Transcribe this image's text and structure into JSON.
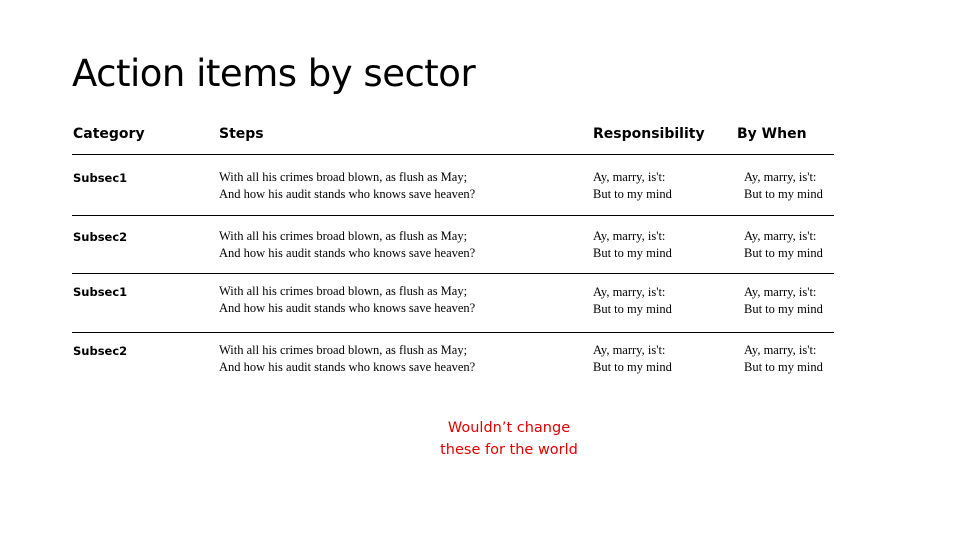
{
  "title": "Action items by sector",
  "table": {
    "headers": {
      "category": "Category",
      "steps": "Steps",
      "responsibility": "Responsibility",
      "by_when": "By When"
    },
    "rows": [
      {
        "category": "Subsec1",
        "steps": [
          "With all his crimes broad blown, as flush as May;",
          "And how his audit stands who knows save heaven?"
        ],
        "responsibility": [
          "Ay, marry, is't:",
          "But to my mind"
        ],
        "by_when": [
          "Ay, marry, is't:",
          "But to my mind"
        ]
      },
      {
        "category": "Subsec2",
        "steps": [
          "With all his crimes broad blown, as flush as May;",
          "And how his audit stands who knows save heaven?"
        ],
        "responsibility": [
          "Ay, marry, is't:",
          "But to my mind"
        ],
        "by_when": [
          "Ay, marry, is't:",
          "But to my mind"
        ]
      },
      {
        "category": "Subsec1",
        "steps": [
          "With all his crimes broad blown, as flush as May;",
          "And how his audit stands who knows save heaven?"
        ],
        "responsibility": [
          "Ay, marry, is't:",
          "But to my mind"
        ],
        "by_when": [
          "Ay, marry, is't:",
          "But to my mind"
        ]
      },
      {
        "category": "Subsec2",
        "steps": [
          "With all his crimes broad blown, as flush as May;",
          "And how his audit stands who knows save heaven?"
        ],
        "responsibility": [
          "Ay, marry, is't:",
          "But to my mind"
        ],
        "by_when": [
          "Ay, marry, is't:",
          "But to my mind"
        ]
      }
    ]
  },
  "note": {
    "lines": [
      "Wouldn’t change",
      "these for the world"
    ],
    "color": "#e00000"
  }
}
